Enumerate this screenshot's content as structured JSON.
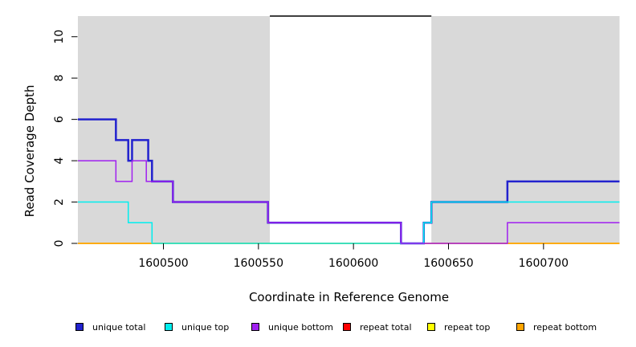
{
  "chart_data": {
    "type": "line",
    "step": true,
    "title": "",
    "xlabel": "Coordinate in Reference Genome",
    "ylabel": "Read Coverage Depth",
    "xlim": [
      1600455,
      1600740
    ],
    "ylim": [
      0,
      11
    ],
    "x_ticks": [
      1600500,
      1600550,
      1600600,
      1600650,
      1600700
    ],
    "y_ticks": [
      0,
      2,
      4,
      6,
      8,
      10
    ],
    "grid": false,
    "legend_position": "bottom",
    "colors": {
      "shading": "#D9D9D9",
      "unique_total": "#2222CE",
      "unique_top": "#00EEEE",
      "unique_bottom": "#A020F0",
      "repeat_total": "#FF0000",
      "repeat_top": "#FFFF00",
      "repeat_bottom": "#FFA500",
      "repeat_region_marker": "#000000"
    },
    "shaded_regions": [
      [
        1600455,
        1600556
      ],
      [
        1600641,
        1600740
      ]
    ],
    "repeat_region_marker": {
      "x": [
        1600556,
        1600641
      ],
      "y": 11
    },
    "series": [
      {
        "name": "repeat total",
        "key": "repeat_total",
        "width": 1.5,
        "points": [
          [
            1600455,
            0
          ],
          [
            1600740,
            0
          ]
        ]
      },
      {
        "name": "repeat top",
        "key": "repeat_top",
        "width": 1.5,
        "points": [
          [
            1600455,
            0
          ],
          [
            1600740,
            0
          ]
        ]
      },
      {
        "name": "repeat bottom",
        "key": "repeat_bottom",
        "width": 1.5,
        "points": [
          [
            1600455,
            0
          ],
          [
            1600740,
            0
          ]
        ]
      },
      {
        "name": "unique total",
        "key": "unique_total",
        "width": 2.5,
        "points": [
          [
            1600455,
            6
          ],
          [
            1600475,
            5
          ],
          [
            1600481.5,
            4
          ],
          [
            1600483.5,
            5
          ],
          [
            1600492,
            4
          ],
          [
            1600494,
            3
          ],
          [
            1600505,
            2
          ],
          [
            1600555,
            1
          ],
          [
            1600625,
            0
          ],
          [
            1600637,
            1
          ],
          [
            1600641,
            2
          ],
          [
            1600681,
            3
          ],
          [
            1600740,
            3
          ]
        ]
      },
      {
        "name": "unique top",
        "key": "unique_top",
        "width": 1.5,
        "points": [
          [
            1600455,
            2
          ],
          [
            1600481.5,
            1
          ],
          [
            1600494,
            0
          ],
          [
            1600637,
            1
          ],
          [
            1600641,
            2
          ],
          [
            1600740,
            2
          ]
        ]
      },
      {
        "name": "unique bottom",
        "key": "unique_bottom",
        "width": 1.5,
        "points": [
          [
            1600455,
            4
          ],
          [
            1600475,
            3
          ],
          [
            1600483.5,
            4
          ],
          [
            1600491,
            3
          ],
          [
            1600505,
            2
          ],
          [
            1600555,
            1
          ],
          [
            1600625,
            0
          ],
          [
            1600681,
            1
          ],
          [
            1600740,
            1
          ]
        ]
      }
    ],
    "legend": [
      {
        "label": "unique total",
        "key": "unique_total"
      },
      {
        "label": "unique top",
        "key": "unique_top"
      },
      {
        "label": "unique bottom",
        "key": "unique_bottom"
      },
      {
        "label": "repeat total",
        "key": "repeat_total"
      },
      {
        "label": "repeat top",
        "key": "repeat_top"
      },
      {
        "label": "repeat bottom",
        "key": "repeat_bottom"
      }
    ]
  }
}
